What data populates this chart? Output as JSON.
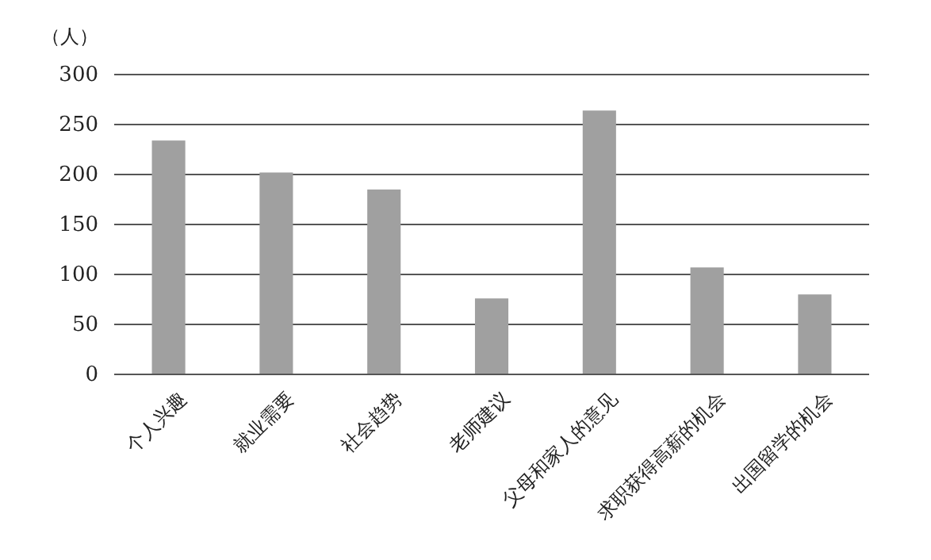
{
  "chart_data": {
    "type": "bar",
    "ylabel": "（人）",
    "categories": [
      "个人兴趣",
      "就业需要",
      "社会趋势",
      "老师建议",
      "父母和家人的意见",
      "求职获得高薪的机会",
      "出国留学的机会"
    ],
    "values": [
      234,
      202,
      185,
      76,
      264,
      107,
      80
    ],
    "color": "#a0a0a0",
    "ylim": [
      0,
      300
    ],
    "yticks": [
      0,
      50,
      100,
      150,
      200,
      250,
      300
    ],
    "grid": "y"
  }
}
